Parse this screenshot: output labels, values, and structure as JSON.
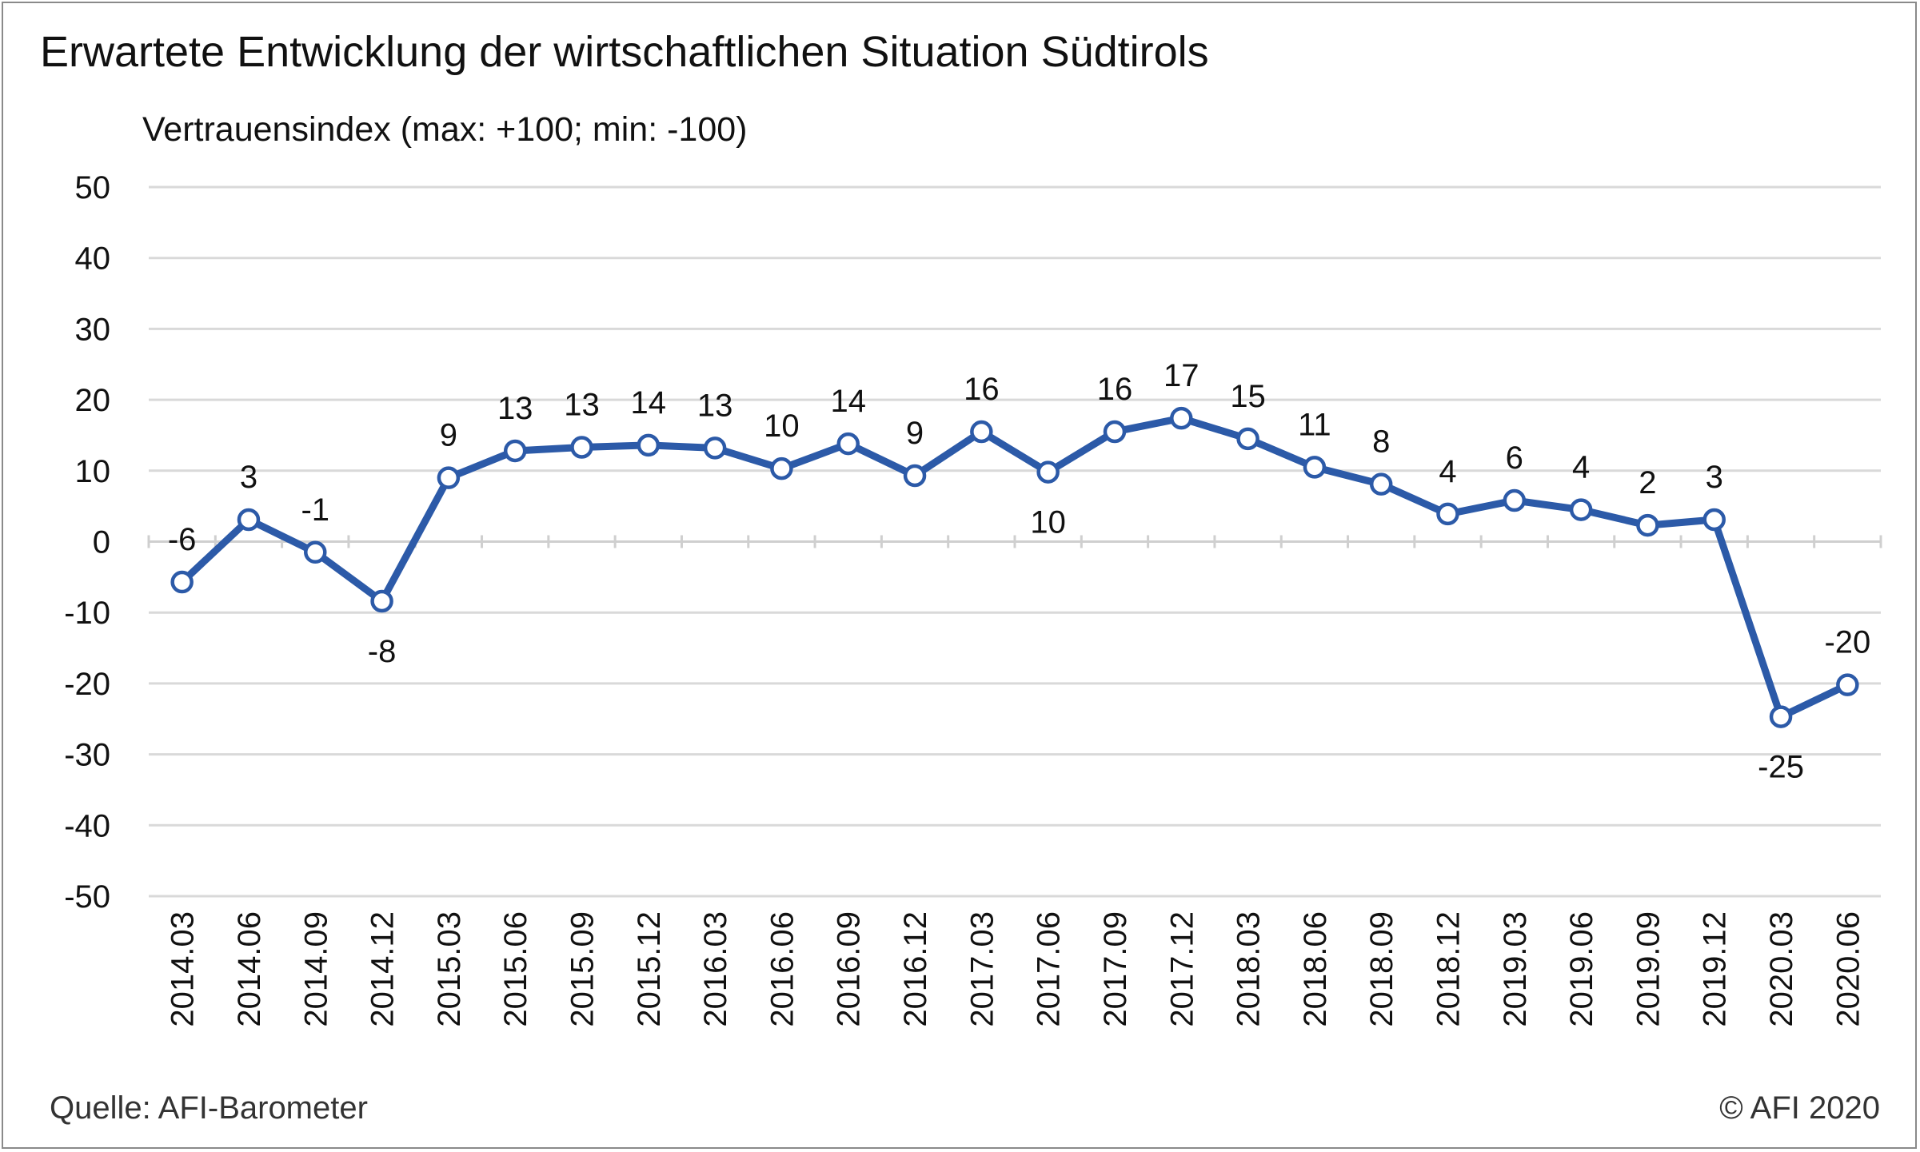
{
  "header": {
    "title": "Erwartete Entwicklung der wirtschaftlichen Situation Südtirols",
    "subtitle": "Vertrauensindex (max: +100; min: -100)"
  },
  "footer": {
    "source": "Quelle: AFI-Barometer",
    "copyright": "© AFI 2020"
  },
  "colors": {
    "line": "#2c5aa8",
    "marker_fill": "#ffffff",
    "grid": "#d9d9d9",
    "axis": "#cfcfcf"
  },
  "chart_data": {
    "type": "line",
    "title": "Erwartete Entwicklung der wirtschaftlichen Situation Südtirols",
    "ylabel": "Vertrauensindex (max: +100; min: -100)",
    "xlabel": "",
    "ylim": [
      -50,
      50
    ],
    "yticks": [
      50,
      40,
      30,
      20,
      10,
      0,
      -10,
      -20,
      -30,
      -40,
      -50
    ],
    "grid": true,
    "legend": "none",
    "categories": [
      "2014.03",
      "2014.06",
      "2014.09",
      "2014.12",
      "2015.03",
      "2015.06",
      "2015.09",
      "2015.12",
      "2016.03",
      "2016.06",
      "2016.09",
      "2016.12",
      "2017.03",
      "2017.06",
      "2017.09",
      "2017.12",
      "2018.03",
      "2018.06",
      "2018.09",
      "2018.12",
      "2019.03",
      "2019.06",
      "2019.09",
      "2019.12",
      "2020.03",
      "2020.06"
    ],
    "series": [
      {
        "values": [
          -5.7,
          3.1,
          -1.5,
          -8.4,
          9.0,
          12.8,
          13.3,
          13.6,
          13.2,
          10.3,
          13.8,
          9.3,
          15.5,
          9.8,
          15.5,
          17.4,
          14.5,
          10.5,
          8.1,
          3.9,
          5.8,
          4.5,
          2.3,
          3.1,
          -24.7,
          -20.2
        ],
        "labels": [
          "-6",
          "3",
          "-1",
          "-8",
          "9",
          "13",
          "13",
          "14",
          "13",
          "10",
          "14",
          "9",
          "16",
          "10",
          "16",
          "17",
          "15",
          "11",
          "8",
          "4",
          "6",
          "4",
          "2",
          "3",
          "-25",
          "-20"
        ]
      }
    ]
  }
}
